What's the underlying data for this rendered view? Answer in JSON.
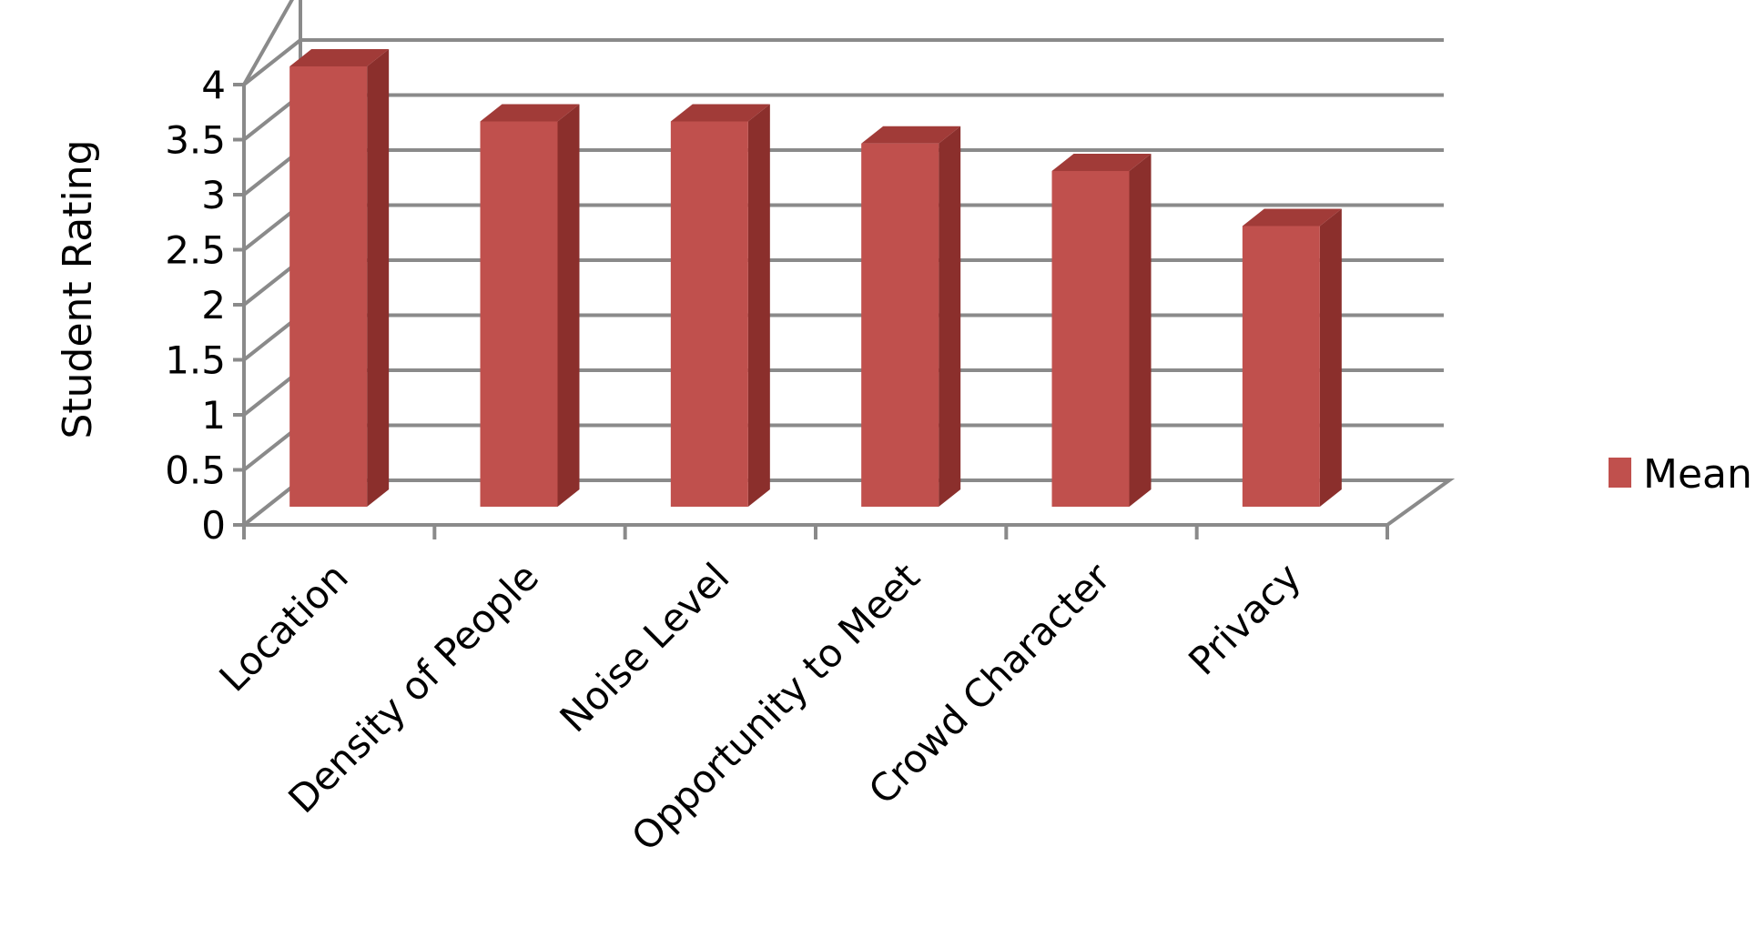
{
  "chart_data": {
    "type": "bar",
    "style": "3d-column",
    "title": "",
    "xlabel": "",
    "ylabel": "Student Rating",
    "ylim": [
      0,
      4
    ],
    "yticks": [
      "0",
      "0.5",
      "1",
      "1.5",
      "2",
      "2.5",
      "3",
      "3.5",
      "4"
    ],
    "grid": true,
    "legend_position": "right",
    "categories": [
      "Location",
      "Density of People",
      "Noise Level",
      "Opportunity to Meet",
      "Crowd Character",
      "Privacy"
    ],
    "series": [
      {
        "name": "Mean",
        "values": [
          4.0,
          3.5,
          3.5,
          3.3,
          3.05,
          2.55
        ],
        "color": "#c0504d",
        "side_color": "#8b2f2c",
        "top_color": "#a13b38"
      }
    ]
  }
}
